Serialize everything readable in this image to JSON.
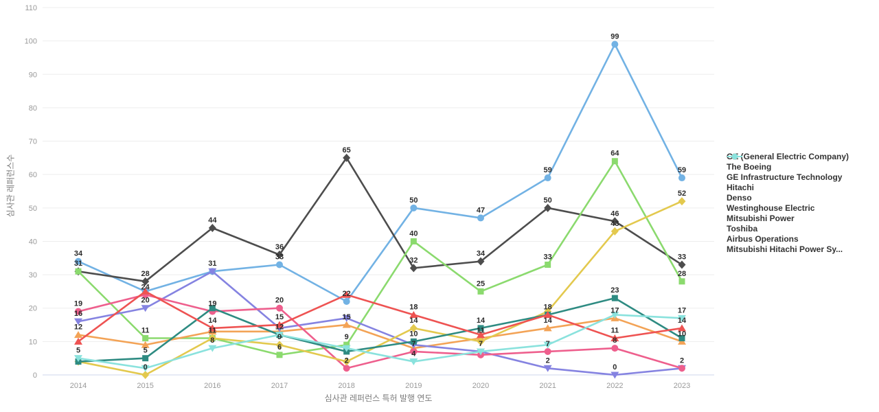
{
  "chart_data": {
    "type": "line",
    "title": "",
    "xlabel": "심사관 레퍼런스 특허 발행 연도",
    "ylabel": "심사관 레퍼런스수",
    "x": [
      "2014",
      "2015",
      "2016",
      "2017",
      "2018",
      "2019",
      "2020",
      "2021",
      "2022",
      "2023"
    ],
    "ylim": [
      0,
      110
    ],
    "ytick_step": 10,
    "grid": "horizontal",
    "legend_position": "right",
    "series": [
      {
        "name": "GE (General Electric Company)",
        "color": "#72b2e4",
        "marker": "circle",
        "values": [
          34,
          25,
          31,
          33,
          22,
          50,
          47,
          59,
          99,
          59
        ],
        "labels": [
          34,
          null,
          31,
          33,
          22,
          50,
          47,
          59,
          99,
          59
        ]
      },
      {
        "name": "The Boeing",
        "color": "#4d4d4d",
        "marker": "diamond",
        "values": [
          31,
          28,
          44,
          36,
          65,
          32,
          34,
          50,
          46,
          33
        ],
        "labels": [
          31,
          28,
          44,
          36,
          65,
          32,
          34,
          50,
          46,
          33
        ]
      },
      {
        "name": "GE Infrastructure Technology",
        "color": "#8bda6e",
        "marker": "square",
        "values": [
          31,
          11,
          11,
          6,
          9,
          40,
          25,
          33,
          64,
          28
        ],
        "labels": [
          null,
          11,
          11,
          6,
          9,
          40,
          25,
          33,
          64,
          28
        ]
      },
      {
        "name": "Hitachi",
        "color": "#f3a356",
        "marker": "triangle-up",
        "values": [
          12,
          9,
          13,
          13,
          15,
          8,
          11,
          14,
          17,
          10
        ],
        "labels": [
          12,
          null,
          null,
          null,
          15,
          null,
          11,
          14,
          17,
          10
        ]
      },
      {
        "name": "Denso",
        "color": "#8583e1",
        "marker": "triangle-down",
        "values": [
          16,
          20,
          31,
          14,
          17,
          9,
          7,
          2,
          0,
          2
        ],
        "labels": [
          16,
          20,
          null,
          null,
          null,
          null,
          null,
          2,
          0,
          null
        ]
      },
      {
        "name": "Westinghouse Electric",
        "color": "#ee5f8d",
        "marker": "circle",
        "values": [
          19,
          24,
          19,
          20,
          2,
          7,
          6,
          7,
          8,
          2
        ],
        "labels": [
          19,
          24,
          19,
          20,
          2,
          7,
          null,
          7,
          8,
          2
        ]
      },
      {
        "name": "Mitsubishi Power",
        "color": "#e3c94e",
        "marker": "diamond",
        "values": [
          4,
          0,
          11,
          9,
          4,
          14,
          10,
          19,
          43,
          52
        ],
        "labels": [
          null,
          0,
          null,
          9,
          null,
          14,
          null,
          null,
          43,
          52
        ]
      },
      {
        "name": "Toshiba",
        "color": "#2e8b82",
        "marker": "square",
        "values": [
          4,
          5,
          20,
          12,
          7,
          10,
          14,
          18,
          23,
          11
        ],
        "labels": [
          null,
          5,
          null,
          12,
          null,
          10,
          14,
          null,
          23,
          null
        ]
      },
      {
        "name": "Airbus Operations",
        "color": "#ee5352",
        "marker": "triangle-up",
        "values": [
          10,
          25,
          14,
          15,
          24,
          18,
          12,
          18,
          11,
          14
        ],
        "labels": [
          null,
          null,
          14,
          15,
          null,
          18,
          null,
          18,
          11,
          14
        ]
      },
      {
        "name": "Mitsubishi Hitachi Power Sy...",
        "color": "#8ae2dd",
        "marker": "triangle-down",
        "values": [
          5,
          2,
          8,
          12,
          8,
          4,
          7,
          9,
          18,
          17
        ],
        "labels": [
          5,
          null,
          8,
          null,
          null,
          4,
          7,
          null,
          null,
          17
        ]
      }
    ]
  },
  "colors": {
    "background": "#ffffff",
    "grid_line": "#ededed",
    "axis_line": "#ccd6eb",
    "tick_text": "#999999",
    "axis_title_text": "#7c7c7c",
    "data_label_text": "#2b2b2b",
    "legend_text": "#333333"
  }
}
